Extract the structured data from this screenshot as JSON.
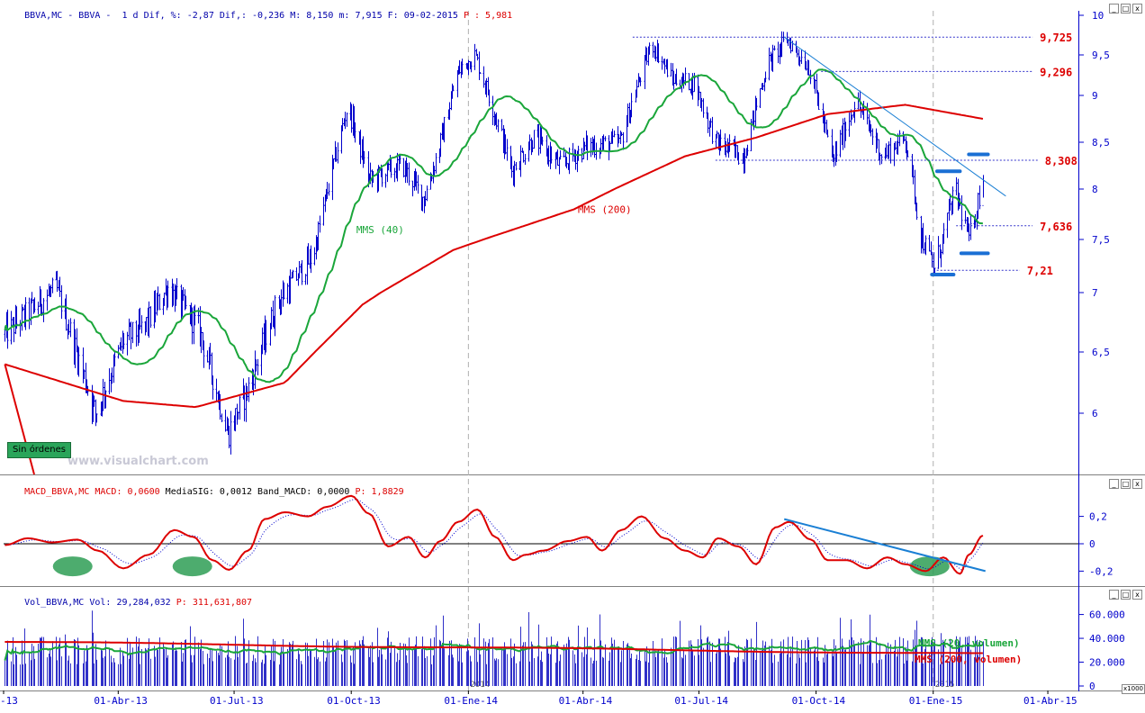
{
  "price_header": {
    "symbol": "BBVA,MC - BBVA -",
    "period": "1 d",
    "dif_pct_label": "Dif, %:",
    "dif_pct": "-2,87",
    "dif_label": "Dif,:",
    "dif": "-0,236",
    "max_label": "M:",
    "max": "8,150",
    "min_label": "m:",
    "min": "7,915",
    "date_label": "F:",
    "date": "09-02-2015",
    "p_label": "P :",
    "p": "5,981"
  },
  "macd_header": {
    "name": "MACD_BBVA,MC",
    "macd_label": "MACD:",
    "macd": "0,0600",
    "sig_label": "MediaSIG:",
    "sig": "0,0012",
    "band_label": "Band_MACD:",
    "band": "0,0000",
    "p_label": "P:",
    "p": "1,8829"
  },
  "vol_header": {
    "name": "Vol_BBVA,MC",
    "vol_label": "Vol:",
    "vol": "29,284,032",
    "p_label": "P:",
    "p": "311,631,807"
  },
  "watermark": "www.visualchart.com",
  "badge": "Sin órdenes",
  "window_buttons": [
    "_",
    "□",
    "x"
  ],
  "vol_unit": "x1000",
  "colors": {
    "price_bars": "#0000cc",
    "mms40": "#1aa63a",
    "mms200": "#dd0000",
    "trendline": "#1a7fd4",
    "levels": "#dd0000",
    "macd": "#dd0000",
    "signal": "#0000cc",
    "highlight": "#2e9e55",
    "axis": "#0000cc"
  },
  "chart_data": [
    {
      "type": "line",
      "title": "BBVA,MC - BBVA - 1 d",
      "x_ticks": [
        "-13",
        "01-Abr-13",
        "01-Jul-13",
        "01-Oct-13",
        "01-Ene-14",
        "01-Abr-14",
        "01-Jul-14",
        "01-Oct-14",
        "01-Ene-15",
        "01-Abr-15"
      ],
      "year_marks": [
        "2014",
        "2015"
      ],
      "y_ticks": [
        "10",
        "9,5",
        "9",
        "8,5",
        "8",
        "7,5",
        "7",
        "6,5",
        "6"
      ],
      "ylim": [
        5.6,
        10
      ],
      "x_range": [
        "2013-01-01",
        "2015-04-25"
      ],
      "grid": false,
      "price_ohlc_daily": {
        "anchor_dates": [
          "2013-01-02",
          "2013-02-11",
          "2013-03-14",
          "2013-04-05",
          "2013-04-21",
          "2013-05-10",
          "2013-06-03",
          "2013-06-26",
          "2013-07-10",
          "2013-08-03",
          "2013-09-01",
          "2013-09-28",
          "2013-10-15",
          "2013-11-10",
          "2013-11-27",
          "2013-12-10",
          "2013-12-24",
          "2014-01-06",
          "2014-02-04",
          "2014-02-21",
          "2014-03-14",
          "2014-04-03",
          "2014-04-30",
          "2014-05-25",
          "2014-06-10",
          "2014-06-27",
          "2014-07-14",
          "2014-08-05",
          "2014-08-24",
          "2014-09-08",
          "2014-09-25",
          "2014-10-14",
          "2014-11-01",
          "2014-11-22",
          "2014-12-10",
          "2014-12-22",
          "2015-01-02",
          "2015-01-18",
          "2015-01-29",
          "2015-02-09"
        ],
        "anchor_closes": [
          6.65,
          7.05,
          6.0,
          6.6,
          6.7,
          7.05,
          6.7,
          5.85,
          6.15,
          6.9,
          7.35,
          8.9,
          8.1,
          8.25,
          7.9,
          8.5,
          9.3,
          9.5,
          8.2,
          8.55,
          8.25,
          8.45,
          8.5,
          9.65,
          9.2,
          9.15,
          8.5,
          8.35,
          9.4,
          9.7,
          9.35,
          8.3,
          8.95,
          8.35,
          8.55,
          7.55,
          7.21,
          8.0,
          7.5,
          8.1
        ],
        "last_bar": {
          "date": "2015-02-09",
          "high": 8.15,
          "low": 7.915
        }
      },
      "series": [
        {
          "name": "MMS (40)",
          "label_date": "2013-10-05",
          "label_value": 7.6
        },
        {
          "name": "MMS (200)",
          "label_date": "2014-03-28",
          "label_value": 7.8
        }
      ],
      "level_lines": [
        {
          "label": "9,725",
          "value": 9.725,
          "from": "2014-05-10",
          "to": "2015-03-20"
        },
        {
          "label": "9,296",
          "value": 9.296,
          "from": "2014-10-05",
          "to": "2015-03-20"
        },
        {
          "label": "8,308",
          "value": 8.308,
          "from": "2014-07-14",
          "to": "2015-03-24"
        },
        {
          "label": "7,636",
          "value": 7.636,
          "from": "2015-01-19",
          "to": "2015-03-20"
        },
        {
          "label": "7,21",
          "value": 7.21,
          "from": "2015-01-01",
          "to": "2015-03-10"
        }
      ],
      "trendline": {
        "from": {
          "date": "2014-09-06",
          "value": 9.725
        },
        "to": {
          "date": "2015-02-27",
          "value": 7.93
        }
      },
      "support_resistance_marks": [
        {
          "value": 8.37,
          "from": "2015-01-29",
          "to": "2015-02-13"
        },
        {
          "value": 8.19,
          "from": "2015-01-04",
          "to": "2015-01-22"
        },
        {
          "value": 7.37,
          "from": "2015-01-23",
          "to": "2015-02-13"
        },
        {
          "value": 7.17,
          "from": "2014-12-31",
          "to": "2015-01-17"
        }
      ]
    },
    {
      "type": "line",
      "title": "MACD_BBVA,MC",
      "y_ticks": [
        "0,2",
        "0",
        "-0,2"
      ],
      "ylim": [
        -0.33,
        0.42
      ],
      "zero_line": true,
      "series": [
        {
          "name": "MACD",
          "dates": [
            "2013-01-02",
            "2013-01-20",
            "2013-02-08",
            "2013-02-28",
            "2013-03-16",
            "2013-04-05",
            "2013-04-25",
            "2013-05-15",
            "2013-05-30",
            "2013-06-14",
            "2013-06-27",
            "2013-07-12",
            "2013-07-25",
            "2013-08-10",
            "2013-08-28",
            "2013-09-12",
            "2013-10-01",
            "2013-10-15",
            "2013-10-30",
            "2013-11-15",
            "2013-11-28",
            "2013-12-10",
            "2013-12-24",
            "2014-01-08",
            "2014-01-22",
            "2014-02-05",
            "2014-02-15",
            "2014-03-01",
            "2014-03-20",
            "2014-04-04",
            "2014-04-16",
            "2014-05-01",
            "2014-05-17",
            "2014-06-04",
            "2014-06-20",
            "2014-07-04",
            "2014-07-16",
            "2014-08-01",
            "2014-08-15",
            "2014-08-30",
            "2014-09-10",
            "2014-09-27",
            "2014-10-10",
            "2014-10-25",
            "2014-11-10",
            "2014-11-26",
            "2014-12-10",
            "2014-12-26",
            "2015-01-09",
            "2015-01-22",
            "2015-01-29",
            "2015-02-09"
          ],
          "values": [
            -0.01,
            0.04,
            0.01,
            0.03,
            -0.05,
            -0.18,
            -0.08,
            0.1,
            0.05,
            -0.12,
            -0.19,
            -0.05,
            0.18,
            0.23,
            0.2,
            0.27,
            0.35,
            0.22,
            -0.02,
            0.05,
            -0.1,
            0.02,
            0.16,
            0.25,
            0.05,
            -0.12,
            -0.08,
            -0.05,
            0.02,
            0.05,
            -0.05,
            0.1,
            0.2,
            0.04,
            -0.05,
            -0.1,
            0.04,
            -0.02,
            -0.15,
            0.12,
            0.16,
            0.03,
            -0.12,
            -0.12,
            -0.18,
            -0.1,
            -0.15,
            -0.2,
            -0.1,
            -0.22,
            -0.08,
            0.06
          ]
        },
        {
          "name": "MediaSIG",
          "note": "dotted signal line, smoothed MACD"
        }
      ],
      "highlights": [
        "2013-02-20",
        "2013-05-25",
        "2014-12-25"
      ],
      "trendline": {
        "from": {
          "date": "2014-09-06",
          "value": 0.18
        },
        "to": {
          "date": "2015-02-11",
          "value": -0.2
        }
      }
    },
    {
      "type": "bar",
      "title": "Vol_BBVA,MC",
      "y_ticks": [
        "60.000",
        "40.000",
        "20.000",
        "0"
      ],
      "ylim": [
        0,
        68000
      ],
      "unit": "x1000",
      "series": [
        {
          "name": "MMS (20, volumen)",
          "typical_range": [
            27000,
            45000
          ]
        },
        {
          "name": "MMS (200, volumen)",
          "values_start_end": [
            37000,
            27000
          ]
        }
      ],
      "note": "daily volume bars, typical 20.000–45.000 with spikes to ~65.000"
    }
  ]
}
